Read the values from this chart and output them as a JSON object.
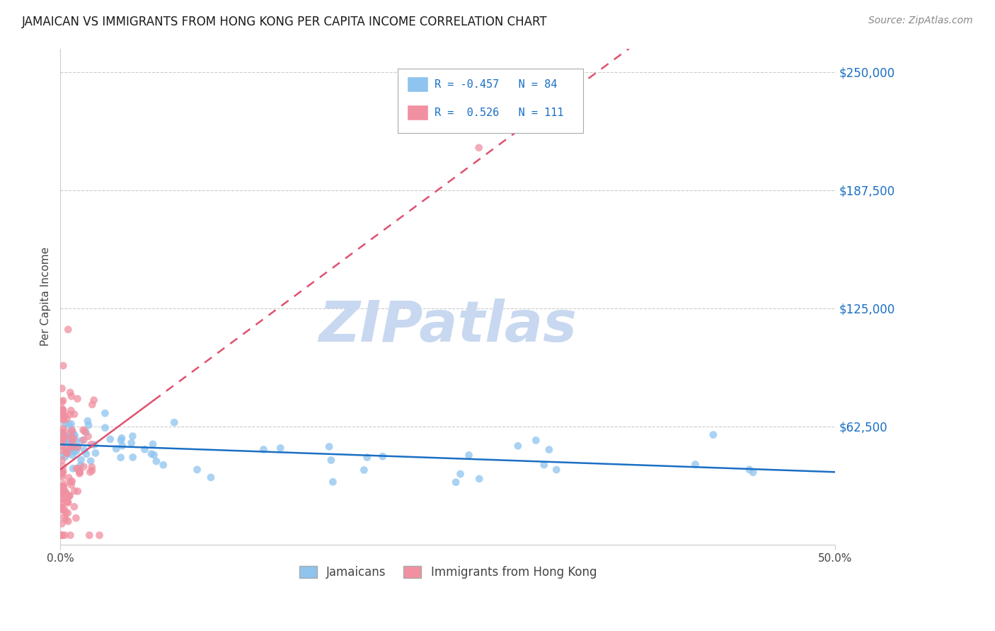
{
  "title": "JAMAICAN VS IMMIGRANTS FROM HONG KONG PER CAPITA INCOME CORRELATION CHART",
  "source": "Source: ZipAtlas.com",
  "ylabel": "Per Capita Income",
  "ytick_labels": [
    "$62,500",
    "$125,000",
    "$187,500",
    "$250,000"
  ],
  "ytick_values": [
    62500,
    125000,
    187500,
    250000
  ],
  "ymin": 0,
  "ymax": 262500,
  "xmin": 0.0,
  "xmax": 0.5,
  "blue_R": -0.457,
  "blue_N": 84,
  "pink_R": 0.526,
  "pink_N": 111,
  "blue_color": "#8EC4EE",
  "pink_color": "#F090A0",
  "blue_line_color": "#1A6FC4",
  "pink_line_color": "#E05070",
  "watermark_zip_color": "#C8D8F0",
  "watermark_atlas_color": "#C8D8F0",
  "background_color": "#FFFFFF",
  "legend_label_blue": "Jamaicans",
  "legend_label_pink": "Immigrants from Hong Kong",
  "xtick_positions": [
    0.0,
    0.5
  ],
  "xtick_labels": [
    "0.0%",
    "50.0%"
  ]
}
